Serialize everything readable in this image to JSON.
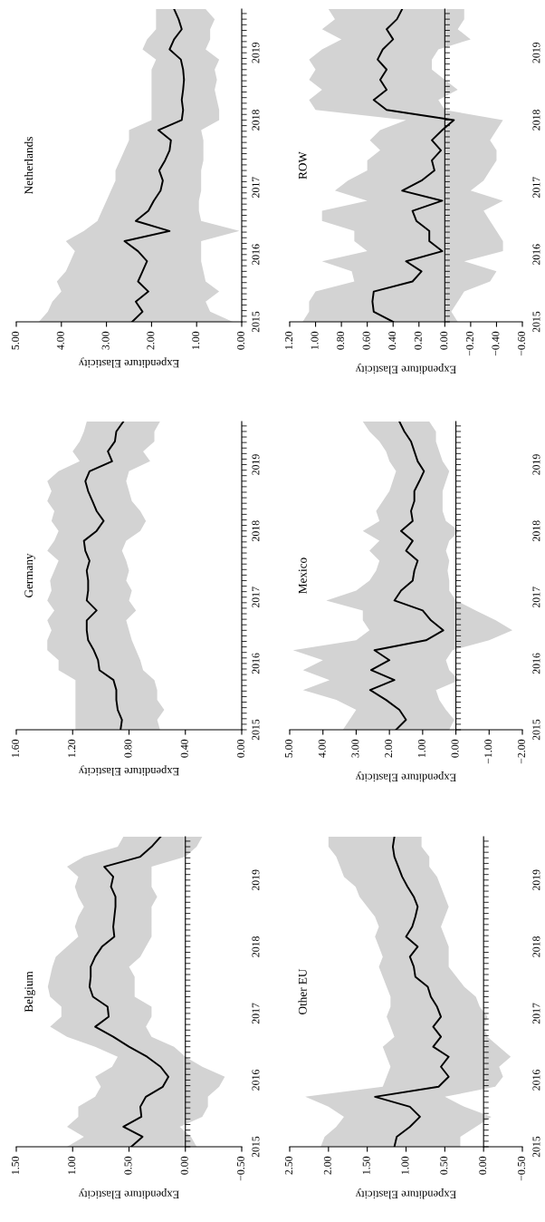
{
  "chart_data": [
    {
      "type": "line",
      "orientation": "horizontal",
      "title": "Netherlands",
      "xlabel": "Expenditure Elasticity",
      "x": [
        2015,
        2015.15,
        2015.3,
        2015.45,
        2015.6,
        2015.75,
        2015.9,
        2016.05,
        2016.2,
        2016.35,
        2016.5,
        2016.65,
        2016.8,
        2016.95,
        2017.1,
        2017.25,
        2017.4,
        2017.55,
        2017.7,
        2017.85,
        2018,
        2018.15,
        2018.3,
        2018.45,
        2018.6,
        2018.75,
        2018.9,
        2019.05,
        2019.2,
        2019.35,
        2019.5,
        2019.65
      ],
      "ylim": [
        2015,
        2019.65
      ],
      "yticks": [
        2015,
        2016,
        2017,
        2018,
        2019
      ],
      "xlim": [
        5,
        0
      ],
      "xticks": [
        {
          "value": 0,
          "label": "0.00"
        },
        {
          "value": 1,
          "label": "1.00"
        },
        {
          "value": 2,
          "label": "2.00"
        },
        {
          "value": 3,
          "label": "3.00"
        },
        {
          "value": 4,
          "label": "4.00"
        },
        {
          "value": 5,
          "label": "5.00"
        }
      ],
      "series": [
        {
          "color": "#000000",
          "values": [
            2.43,
            2.2,
            2.35,
            2.07,
            2.3,
            2.2,
            2.1,
            2.3,
            2.6,
            1.6,
            2.35,
            2.07,
            1.95,
            1.8,
            1.75,
            1.83,
            1.7,
            1.6,
            1.57,
            1.85,
            1.33,
            1.3,
            1.33,
            1.3,
            1.28,
            1.3,
            1.35,
            1.6,
            1.5,
            1.33,
            1.4,
            1.5
          ],
          "lower": [
            0.2,
            0.7,
            0.8,
            0.5,
            0.8,
            0.85,
            0.9,
            0.9,
            0.9,
            0.05,
            0.9,
            0.95,
            0.95,
            0.9,
            0.9,
            0.9,
            0.85,
            0.85,
            0.85,
            0.9,
            0.5,
            0.5,
            0.55,
            0.6,
            0.55,
            0.6,
            0.5,
            0.8,
            0.7,
            0.7,
            0.6,
            0.8
          ],
          "upper": [
            4.5,
            4.3,
            4.2,
            4.0,
            4.1,
            3.9,
            3.8,
            3.7,
            3.9,
            3.5,
            3.2,
            3.1,
            3.0,
            2.9,
            2.8,
            2.8,
            2.7,
            2.6,
            2.5,
            2.5,
            2.0,
            2.0,
            2.0,
            2.0,
            2.0,
            2.0,
            1.9,
            2.2,
            2.1,
            1.9,
            1.9,
            1.9
          ]
        }
      ]
    },
    {
      "type": "line",
      "orientation": "horizontal",
      "title": "ROW",
      "xlabel": "Expenditure Elasticity",
      "x": [
        2015,
        2015.15,
        2015.3,
        2015.45,
        2015.6,
        2015.75,
        2015.9,
        2016.05,
        2016.2,
        2016.35,
        2016.5,
        2016.65,
        2016.8,
        2016.95,
        2017.1,
        2017.25,
        2017.4,
        2017.55,
        2017.7,
        2017.85,
        2018,
        2018.15,
        2018.3,
        2018.45,
        2018.6,
        2018.75,
        2018.9,
        2019.05,
        2019.2,
        2019.35,
        2019.5,
        2019.65
      ],
      "ylim": [
        2015,
        2019.65
      ],
      "yticks": [
        2015,
        2016,
        2017,
        2018,
        2019
      ],
      "xlim": [
        1.2,
        -0.6
      ],
      "xticks": [
        {
          "value": -0.6,
          "label": "−0.60"
        },
        {
          "value": -0.4,
          "label": "−0.40"
        },
        {
          "value": -0.2,
          "label": "−0.20"
        },
        {
          "value": 0,
          "label": "0.00"
        },
        {
          "value": 0.2,
          "label": "0.20"
        },
        {
          "value": 0.4,
          "label": "0.40"
        },
        {
          "value": 0.6,
          "label": "0.60"
        },
        {
          "value": 0.8,
          "label": "0.80"
        },
        {
          "value": 1.0,
          "label": "1.00"
        },
        {
          "value": 1.2,
          "label": "1.20"
        }
      ],
      "series": [
        {
          "color": "#000000",
          "values": [
            0.4,
            0.55,
            0.56,
            0.55,
            0.25,
            0.18,
            0.3,
            0.02,
            0.12,
            0.12,
            0.22,
            0.25,
            0.02,
            0.33,
            0.18,
            0.08,
            0.1,
            0.03,
            0.1,
            0.02,
            -0.07,
            0.45,
            0.55,
            0.45,
            0.5,
            0.45,
            0.52,
            0.48,
            0.4,
            0.45,
            0.37,
            0.33
          ],
          "lower": [
            -0.1,
            -0.05,
            -0.1,
            -0.15,
            -0.35,
            -0.4,
            -0.15,
            -0.45,
            -0.45,
            -0.4,
            -0.35,
            -0.3,
            -0.45,
            -0.2,
            -0.3,
            -0.35,
            -0.4,
            -0.4,
            -0.35,
            -0.4,
            -0.45,
            0.0,
            0.05,
            -0.1,
            0.0,
            0.1,
            0.1,
            0.05,
            -0.2,
            -0.1,
            -0.15,
            -0.15
          ],
          "upper": [
            1.1,
            1.05,
            1.05,
            1.0,
            0.7,
            0.72,
            0.95,
            0.6,
            0.7,
            0.7,
            0.95,
            0.95,
            0.6,
            0.85,
            0.75,
            0.6,
            0.6,
            0.5,
            0.58,
            0.5,
            0.3,
            1.0,
            1.05,
            0.95,
            1.05,
            1.0,
            1.05,
            0.95,
            0.8,
            0.95,
            0.85,
            0.9
          ]
        }
      ]
    },
    {
      "type": "line",
      "orientation": "horizontal",
      "title": "Germany",
      "xlabel": "Expenditure Elasticity",
      "x": [
        2015,
        2015.15,
        2015.3,
        2015.45,
        2015.6,
        2015.75,
        2015.9,
        2016.05,
        2016.2,
        2016.35,
        2016.5,
        2016.65,
        2016.8,
        2016.95,
        2017.1,
        2017.25,
        2017.4,
        2017.55,
        2017.7,
        2017.85,
        2018,
        2018.15,
        2018.3,
        2018.45,
        2018.6,
        2018.75,
        2018.9,
        2019.05,
        2019.2,
        2019.35,
        2019.5,
        2019.65
      ],
      "ylim": [
        2015,
        2019.65
      ],
      "yticks": [
        2015,
        2016,
        2017,
        2018,
        2019
      ],
      "xlim": [
        1.6,
        0
      ],
      "xticks": [
        {
          "value": 0,
          "label": "0.00"
        },
        {
          "value": 0.4,
          "label": "0.40"
        },
        {
          "value": 0.8,
          "label": "0.80"
        },
        {
          "value": 1.2,
          "label": "1.20"
        },
        {
          "value": 1.6,
          "label": "1.60"
        }
      ],
      "series": [
        {
          "color": "#000000",
          "values": [
            0.86,
            0.85,
            0.88,
            0.89,
            0.89,
            0.91,
            1.01,
            1.02,
            1.05,
            1.09,
            1.1,
            1.1,
            1.03,
            1.1,
            1.09,
            1.09,
            1.1,
            1.08,
            1.11,
            1.12,
            1.03,
            0.98,
            1.03,
            1.06,
            1.09,
            1.11,
            1.08,
            0.92,
            0.95,
            0.9,
            0.89,
            0.84
          ],
          "lower": [
            0.58,
            0.6,
            0.55,
            0.6,
            0.6,
            0.62,
            0.7,
            0.72,
            0.75,
            0.78,
            0.8,
            0.82,
            0.75,
            0.8,
            0.78,
            0.82,
            0.8,
            0.82,
            0.85,
            0.82,
            0.72,
            0.68,
            0.72,
            0.78,
            0.8,
            0.82,
            0.8,
            0.65,
            0.7,
            0.62,
            0.62,
            0.58
          ],
          "upper": [
            1.18,
            1.18,
            1.18,
            1.18,
            1.18,
            1.18,
            1.3,
            1.3,
            1.38,
            1.38,
            1.35,
            1.38,
            1.33,
            1.38,
            1.35,
            1.36,
            1.33,
            1.3,
            1.38,
            1.33,
            1.3,
            1.35,
            1.33,
            1.38,
            1.35,
            1.38,
            1.3,
            1.15,
            1.2,
            1.15,
            1.12,
            1.1
          ]
        }
      ]
    },
    {
      "type": "line",
      "orientation": "horizontal",
      "title": "Mexico",
      "xlabel": "Expenditure Elasticity",
      "x": [
        2015,
        2015.15,
        2015.3,
        2015.45,
        2015.6,
        2015.75,
        2015.9,
        2016.05,
        2016.2,
        2016.35,
        2016.5,
        2016.65,
        2016.8,
        2016.95,
        2017.1,
        2017.25,
        2017.4,
        2017.55,
        2017.7,
        2017.85,
        2018,
        2018.15,
        2018.3,
        2018.45,
        2018.6,
        2018.75,
        2018.9,
        2019.05,
        2019.2,
        2019.35,
        2019.5,
        2019.65
      ],
      "ylim": [
        2015,
        2019.65
      ],
      "yticks": [
        2015,
        2016,
        2017,
        2018,
        2019
      ],
      "xlim": [
        5,
        -2
      ],
      "xticks": [
        {
          "value": -2,
          "label": "−2.00"
        },
        {
          "value": -1,
          "label": "−1.00"
        },
        {
          "value": 0,
          "label": "0.00"
        },
        {
          "value": 1,
          "label": "1.00"
        },
        {
          "value": 2,
          "label": "2.00"
        },
        {
          "value": 3,
          "label": "3.00"
        },
        {
          "value": 4,
          "label": "4.00"
        },
        {
          "value": 5,
          "label": "5.00"
        }
      ],
      "series": [
        {
          "color": "#000000",
          "values": [
            1.8,
            1.5,
            1.7,
            2.1,
            2.58,
            1.85,
            2.55,
            2.0,
            2.45,
            0.9,
            0.38,
            0.75,
            1.0,
            1.85,
            1.65,
            1.3,
            1.25,
            1.15,
            1.5,
            1.3,
            1.65,
            1.3,
            1.35,
            1.25,
            1.25,
            1.1,
            0.96,
            1.15,
            1.25,
            1.35,
            1.55,
            1.7
          ],
          "lower": [
            0.2,
            0.05,
            0.3,
            0.5,
            0.6,
            -0.1,
            0.2,
            0.3,
            0.1,
            -1.0,
            -1.7,
            -1.2,
            -0.6,
            0.0,
            0.2,
            0.2,
            0.25,
            0.2,
            0.3,
            0.2,
            -0.1,
            0.3,
            0.4,
            0.4,
            0.4,
            0.3,
            0.2,
            0.4,
            0.5,
            0.6,
            0.6,
            0.8
          ],
          "upper": [
            3.4,
            3.2,
            3.0,
            3.6,
            4.6,
            3.8,
            4.6,
            4.0,
            4.9,
            3.0,
            2.6,
            2.8,
            2.8,
            3.9,
            3.0,
            2.6,
            2.4,
            2.3,
            2.6,
            2.3,
            2.8,
            2.3,
            2.4,
            2.2,
            2.0,
            1.9,
            1.8,
            2.0,
            2.1,
            2.3,
            2.6,
            2.8
          ]
        }
      ]
    },
    {
      "type": "line",
      "orientation": "horizontal",
      "title": "Belgium",
      "xlabel": "Expenditure Elasticity",
      "x": [
        2015,
        2015.15,
        2015.3,
        2015.45,
        2015.6,
        2015.75,
        2015.9,
        2016.05,
        2016.2,
        2016.35,
        2016.5,
        2016.65,
        2016.8,
        2016.95,
        2017.1,
        2017.25,
        2017.4,
        2017.55,
        2017.7,
        2017.85,
        2018,
        2018.15,
        2018.3,
        2018.45,
        2018.6,
        2018.75,
        2018.9,
        2019.05,
        2019.2,
        2019.35,
        2019.5,
        2019.65
      ],
      "ylim": [
        2015,
        2019.65
      ],
      "yticks": [
        2015,
        2016,
        2017,
        2018,
        2019
      ],
      "xlim": [
        1.5,
        -0.5
      ],
      "xticks": [
        {
          "value": -0.5,
          "label": "−0.50"
        },
        {
          "value": 0,
          "label": "0.00"
        },
        {
          "value": 0.5,
          "label": "0.50"
        },
        {
          "value": 1.0,
          "label": "1.00"
        },
        {
          "value": 1.5,
          "label": "1.50"
        }
      ],
      "series": [
        {
          "color": "#000000",
          "values": [
            0.48,
            0.38,
            0.55,
            0.39,
            0.4,
            0.35,
            0.2,
            0.15,
            0.22,
            0.34,
            0.5,
            0.64,
            0.8,
            0.68,
            0.69,
            0.82,
            0.85,
            0.84,
            0.84,
            0.8,
            0.74,
            0.63,
            0.64,
            0.63,
            0.62,
            0.62,
            0.66,
            0.64,
            0.72,
            0.4,
            0.3,
            0.22
          ],
          "lower": [
            -0.1,
            -0.05,
            0.05,
            -0.15,
            -0.2,
            -0.2,
            -0.3,
            -0.35,
            -0.15,
            0.0,
            0.1,
            0.3,
            0.35,
            0.3,
            0.3,
            0.45,
            0.45,
            0.45,
            0.5,
            0.4,
            0.35,
            0.3,
            0.3,
            0.3,
            0.3,
            0.25,
            0.3,
            0.3,
            0.3,
            0.0,
            -0.1,
            -0.15
          ],
          "upper": [
            1.05,
            0.9,
            1.05,
            0.95,
            0.95,
            0.8,
            0.75,
            0.8,
            0.65,
            0.6,
            0.8,
            1.05,
            1.2,
            1.1,
            1.1,
            1.2,
            1.22,
            1.2,
            1.18,
            1.15,
            1.05,
            0.95,
            0.98,
            0.95,
            0.9,
            0.95,
            0.98,
            0.95,
            1.05,
            0.9,
            0.6,
            0.55
          ]
        }
      ]
    },
    {
      "type": "line",
      "orientation": "horizontal",
      "title": "Other EU",
      "xlabel": "Expenditure Elasticity",
      "x": [
        2015,
        2015.15,
        2015.3,
        2015.45,
        2015.6,
        2015.75,
        2015.9,
        2016.05,
        2016.2,
        2016.35,
        2016.5,
        2016.65,
        2016.8,
        2016.95,
        2017.1,
        2017.25,
        2017.4,
        2017.55,
        2017.7,
        2017.85,
        2018,
        2018.15,
        2018.3,
        2018.45,
        2018.6,
        2018.75,
        2018.9,
        2019.05,
        2019.2,
        2019.35,
        2019.5,
        2019.65
      ],
      "ylim": [
        2015,
        2019.65
      ],
      "yticks": [
        2015,
        2016,
        2017,
        2018,
        2019
      ],
      "xlim": [
        2.5,
        -0.5
      ],
      "xticks": [
        {
          "value": -0.5,
          "label": "−0.50"
        },
        {
          "value": 0,
          "label": "0.00"
        },
        {
          "value": 0.5,
          "label": "0.50"
        },
        {
          "value": 1.0,
          "label": "1.00"
        },
        {
          "value": 1.5,
          "label": "1.50"
        },
        {
          "value": 2.0,
          "label": "2.00"
        },
        {
          "value": 2.5,
          "label": "2.50"
        }
      ],
      "series": [
        {
          "color": "#000000",
          "values": [
            1.15,
            1.12,
            0.95,
            0.82,
            0.95,
            1.4,
            0.58,
            0.45,
            0.55,
            0.45,
            0.65,
            0.55,
            0.65,
            0.55,
            0.6,
            0.68,
            0.72,
            0.88,
            0.9,
            0.95,
            0.85,
            1.0,
            0.92,
            0.88,
            0.85,
            0.9,
            0.98,
            1.05,
            1.1,
            1.15,
            1.17,
            1.15
          ],
          "lower": [
            0.3,
            0.3,
            0.1,
            -0.1,
            0.25,
            0.5,
            -0.15,
            -0.25,
            -0.2,
            -0.35,
            -0.2,
            -0.05,
            0.0,
            -0.05,
            0.05,
            0.1,
            0.25,
            0.35,
            0.45,
            0.45,
            0.45,
            0.5,
            0.55,
            0.5,
            0.45,
            0.5,
            0.55,
            0.6,
            0.7,
            0.7,
            0.8,
            0.8
          ],
          "upper": [
            2.1,
            2.05,
            1.9,
            1.8,
            2.0,
            2.3,
            1.3,
            1.25,
            1.2,
            1.25,
            1.3,
            1.15,
            1.2,
            1.25,
            1.2,
            1.2,
            1.25,
            1.3,
            1.35,
            1.3,
            1.35,
            1.4,
            1.35,
            1.4,
            1.5,
            1.6,
            1.65,
            1.8,
            1.85,
            1.9,
            2.0,
            2.0
          ]
        }
      ]
    }
  ]
}
